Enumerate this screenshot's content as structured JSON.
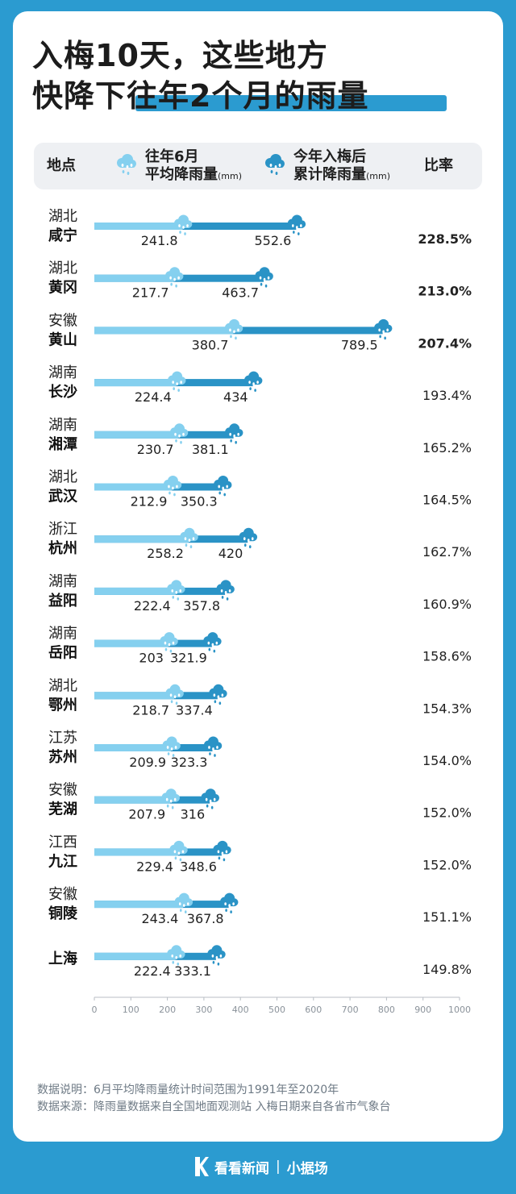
{
  "title": {
    "line1": "入梅10天，这些地方",
    "line2": "快降下往年2个月的雨量"
  },
  "header": {
    "location": "地点",
    "avg_line1": "往年6月",
    "avg_line2": "平均降雨量",
    "avg_unit": "(mm)",
    "cum_line1": "今年入梅后",
    "cum_line2": "累计降雨量",
    "cum_unit": "(mm)",
    "ratio": "比率"
  },
  "colors": {
    "avg": "#85d0ef",
    "cum": "#2a93c6",
    "background": "#2b9bd0"
  },
  "icons": {
    "avg": "rain-cloud-light-icon",
    "cum": "rain-cloud-dark-icon"
  },
  "chart_data": {
    "type": "bar",
    "xlim": [
      0,
      1000
    ],
    "xticks": [
      "0",
      "100",
      "200",
      "300",
      "400",
      "500",
      "600",
      "700",
      "800",
      "900",
      "1000"
    ],
    "rows": [
      {
        "province": "湖北",
        "city": "咸宁",
        "avg": 241.8,
        "avg_label": "241.8",
        "cum": 552.6,
        "cum_label": "552.6",
        "ratio": "228.5%",
        "bold": true
      },
      {
        "province": "湖北",
        "city": "黄冈",
        "avg": 217.7,
        "avg_label": "217.7",
        "cum": 463.7,
        "cum_label": "463.7",
        "ratio": "213.0%",
        "bold": true
      },
      {
        "province": "安徽",
        "city": "黄山",
        "avg": 380.7,
        "avg_label": "380.7",
        "cum": 789.5,
        "cum_label": "789.5",
        "ratio": "207.4%",
        "bold": true
      },
      {
        "province": "湖南",
        "city": "长沙",
        "avg": 224.4,
        "avg_label": "224.4",
        "cum": 434,
        "cum_label": "434",
        "ratio": "193.4%",
        "bold": false
      },
      {
        "province": "湖南",
        "city": "湘潭",
        "avg": 230.7,
        "avg_label": "230.7",
        "cum": 381.1,
        "cum_label": "381.1",
        "ratio": "165.2%",
        "bold": false
      },
      {
        "province": "湖北",
        "city": "武汉",
        "avg": 212.9,
        "avg_label": "212.9",
        "cum": 350.3,
        "cum_label": "350.3",
        "ratio": "164.5%",
        "bold": false
      },
      {
        "province": "浙江",
        "city": "杭州",
        "avg": 258.2,
        "avg_label": "258.2",
        "cum": 420,
        "cum_label": "420",
        "ratio": "162.7%",
        "bold": false
      },
      {
        "province": "湖南",
        "city": "益阳",
        "avg": 222.4,
        "avg_label": "222.4",
        "cum": 357.8,
        "cum_label": "357.8",
        "ratio": "160.9%",
        "bold": false
      },
      {
        "province": "湖南",
        "city": "岳阳",
        "avg": 203,
        "avg_label": "203",
        "cum": 321.9,
        "cum_label": "321.9",
        "ratio": "158.6%",
        "bold": false
      },
      {
        "province": "湖北",
        "city": "鄂州",
        "avg": 218.7,
        "avg_label": "218.7",
        "cum": 337.4,
        "cum_label": "337.4",
        "ratio": "154.3%",
        "bold": false
      },
      {
        "province": "江苏",
        "city": "苏州",
        "avg": 209.9,
        "avg_label": "209.9",
        "cum": 323.3,
        "cum_label": "323.3",
        "ratio": "154.0%",
        "bold": false
      },
      {
        "province": "安徽",
        "city": "芜湖",
        "avg": 207.9,
        "avg_label": "207.9",
        "cum": 316,
        "cum_label": "316",
        "ratio": "152.0%",
        "bold": false
      },
      {
        "province": "江西",
        "city": "九江",
        "avg": 229.4,
        "avg_label": "229.4",
        "cum": 348.6,
        "cum_label": "348.6",
        "ratio": "152.0%",
        "bold": false
      },
      {
        "province": "安徽",
        "city": "铜陵",
        "avg": 243.4,
        "avg_label": "243.4",
        "cum": 367.8,
        "cum_label": "367.8",
        "ratio": "151.1%",
        "bold": false
      },
      {
        "province": "",
        "city": "上海",
        "avg": 222.4,
        "avg_label": "222.4",
        "cum": 333.1,
        "cum_label": "333.1",
        "ratio": "149.8%",
        "bold": false
      }
    ]
  },
  "notes": {
    "desc_label": "数据说明：",
    "desc_text": "6月平均降雨量统计时间范围为1991年至2020年",
    "source_label": "数据来源：",
    "source_text": "降雨量数据来自全国地面观测站 入梅日期来自各省市气象台"
  },
  "brand": {
    "name": "看看新闻",
    "sub": "小据场"
  }
}
